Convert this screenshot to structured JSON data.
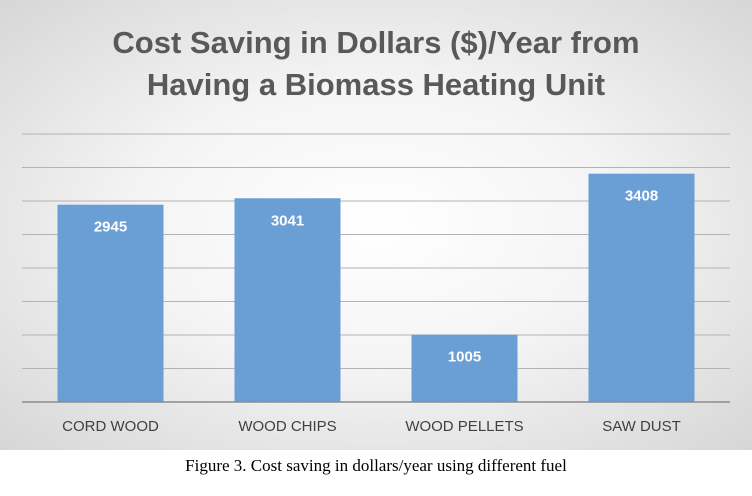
{
  "chart_data": {
    "type": "bar",
    "title": "Cost Saving in Dollars ($)/Year from\nHaving a Biomass Heating Unit",
    "categories": [
      "CORD WOOD",
      "WOOD CHIPS",
      "WOOD PELLETS",
      "SAW DUST"
    ],
    "values": [
      2945,
      3041,
      1005,
      3408
    ],
    "value_labels": [
      "2945",
      "3041",
      "1005",
      "3408"
    ],
    "xlabel": "",
    "ylabel": "",
    "ylim": [
      0,
      4000
    ],
    "grid": true,
    "legend": "none",
    "colors": {
      "bar": "#6a9fd6",
      "gridline": "#b3b3b3",
      "axis": "#8c8c8c"
    }
  },
  "caption": "Figure 3. Cost saving in dollars/year using different fuel"
}
